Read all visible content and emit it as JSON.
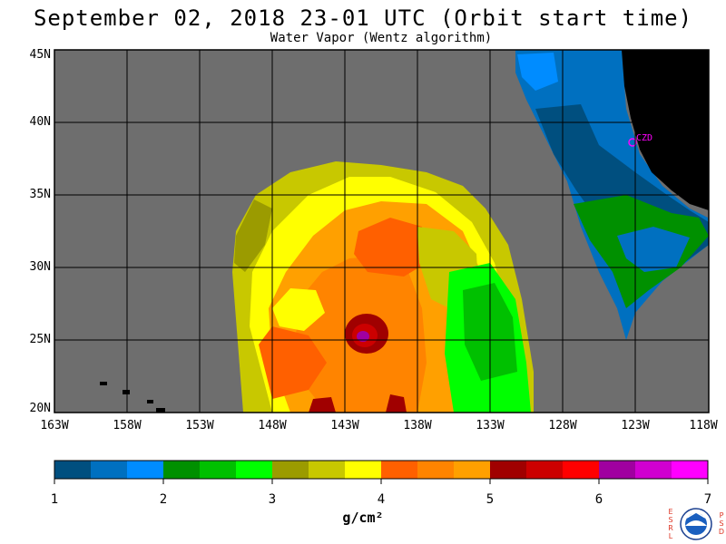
{
  "header": {
    "title": "September 02, 2018  23-01 UTC  (Orbit start time)",
    "subtitle": "Water Vapor (Wentz algorithm)"
  },
  "map": {
    "lat_labels": [
      "45N",
      "40N",
      "35N",
      "30N",
      "25N",
      "20N"
    ],
    "lon_labels": [
      "163W",
      "158W",
      "153W",
      "148W",
      "143W",
      "138W",
      "133W",
      "128W",
      "123W",
      "118W"
    ],
    "station_label": "CZD",
    "colors": {
      "ocean_nodata": "#6e6e6e",
      "land": "#000000",
      "station": "#ff00ff"
    }
  },
  "colorbar": {
    "ticks": [
      "1",
      "2",
      "3",
      "4",
      "5",
      "6",
      "7"
    ],
    "unit": "g/cm²",
    "colors": [
      "#004f7f",
      "#0070c0",
      "#008cff",
      "#009000",
      "#00c000",
      "#00ff00",
      "#9b9b00",
      "#c8c800",
      "#ffff00",
      "#ff6000",
      "#ff8400",
      "#ffa000",
      "#a00000",
      "#cc0000",
      "#ff0000",
      "#a000a0",
      "#d000d0",
      "#ff00ff"
    ]
  },
  "logo": {
    "left_letters": "ESRL",
    "right_letters": "PSD",
    "center_text": "NOAA"
  }
}
